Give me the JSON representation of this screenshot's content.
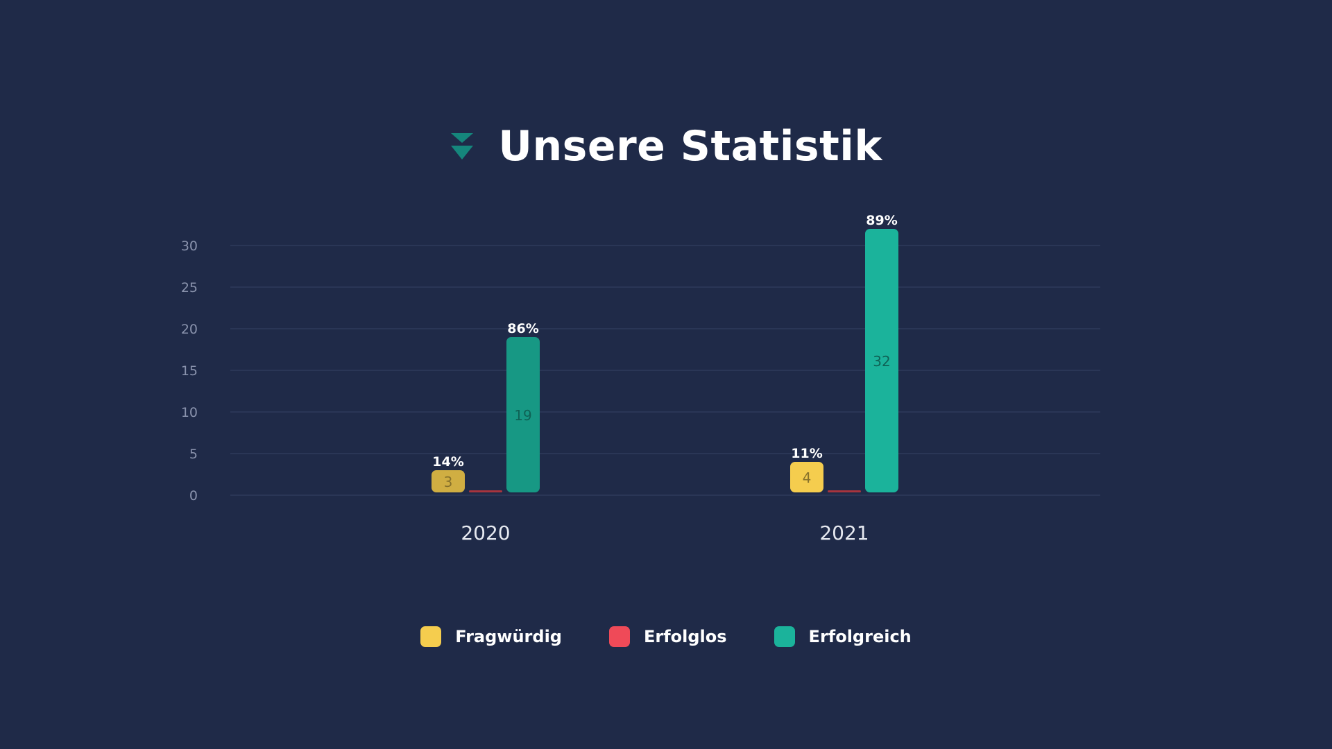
{
  "heading": {
    "title": "Unsere Statistik",
    "icon": "double-chevron-down-icon"
  },
  "colors": {
    "background": "#1f2a48",
    "accent": "#15867c",
    "gridline": "#2f3a5a",
    "tick_text": "#8a93ad",
    "category_text": "#e6e9f0",
    "fragwuerdig": "#f5cd4e",
    "erfolglos": "#ef4a58",
    "erfolgreich": "#1bb39b"
  },
  "chart_data": {
    "type": "bar",
    "title": "",
    "xlabel": "",
    "ylabel": "",
    "ylim": [
      0,
      30
    ],
    "yticks": [
      0,
      5,
      10,
      15,
      20,
      25,
      30
    ],
    "grid": true,
    "legend_position": "bottom-center",
    "categories": [
      "2020",
      "2021"
    ],
    "series": [
      {
        "name": "Fragwürdig",
        "color": "#f5cd4e",
        "values": [
          3,
          4
        ],
        "value_labels": [
          "3",
          "4"
        ],
        "percent_labels": [
          "14%",
          "11%"
        ]
      },
      {
        "name": "Erfolglos",
        "color": "#ef4a58",
        "values": [
          0,
          0
        ],
        "value_labels": [
          "",
          ""
        ],
        "percent_labels": [
          "",
          ""
        ]
      },
      {
        "name": "Erfolgreich",
        "color": "#1bb39b",
        "values": [
          19,
          32
        ],
        "value_labels": [
          "19",
          "32"
        ],
        "percent_labels": [
          "86%",
          "89%"
        ]
      }
    ]
  }
}
